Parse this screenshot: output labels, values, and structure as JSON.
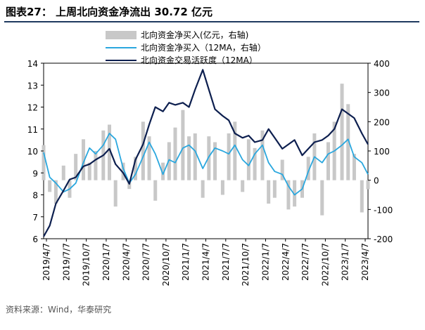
{
  "header": {
    "title": "图表27： 上周北向资金净流出 30.72 亿元"
  },
  "footer": {
    "source": "资料来源：Wind，华泰研究"
  },
  "chart_data": {
    "type": "bar+line",
    "title": "图表27： 上周北向资金净流出 30.72 亿元",
    "left_axis": {
      "min": 6,
      "max": 14,
      "ticks": [
        6,
        7,
        8,
        9,
        10,
        11,
        12,
        13,
        14
      ]
    },
    "right_axis": {
      "min": -200,
      "max": 400,
      "ticks": [
        -200,
        -100,
        0,
        100,
        200,
        300,
        400
      ]
    },
    "x_tick_labels": [
      "2019/4/7",
      "2019/7/7",
      "2019/10/7",
      "2020/1/7",
      "2020/4/7",
      "2020/7/7",
      "2020/10/7",
      "2021/1/7",
      "2021/4/7",
      "2021/7/7",
      "2021/10/7",
      "2022/1/7",
      "2022/4/7",
      "2022/7/7",
      "2022/10/7",
      "2023/1/7",
      "2023/4/7"
    ],
    "x_range": [
      "2019-04-07",
      "2023-04-30"
    ],
    "legend": {
      "placement": "top",
      "items": [
        {
          "label": "北向资金净买入(亿元，右轴)",
          "color": "#c8c8c8",
          "kind": "bar"
        },
        {
          "label": "北向资金净买入（12MA，右轴）",
          "color": "#2aa7de",
          "kind": "line"
        },
        {
          "label": "北向资金交易活跃度（12MA）",
          "color": "#0d1f4f",
          "kind": "line"
        }
      ]
    },
    "series": [
      {
        "name": "北向资金交易活跃度（12MA）",
        "axis": "left",
        "color": "#0d1f4f",
        "x": [
          "2019-04-07",
          "2019-05-05",
          "2019-06-02",
          "2019-07-07",
          "2019-08-04",
          "2019-09-01",
          "2019-10-06",
          "2019-11-03",
          "2019-12-01",
          "2020-01-05",
          "2020-02-02",
          "2020-03-01",
          "2020-04-05",
          "2020-05-03",
          "2020-05-31",
          "2020-07-05",
          "2020-08-02",
          "2020-08-30",
          "2020-10-04",
          "2020-11-01",
          "2020-11-29",
          "2021-01-03",
          "2021-01-31",
          "2021-02-28",
          "2021-04-04",
          "2021-05-02",
          "2021-05-30",
          "2021-07-04",
          "2021-08-01",
          "2021-08-29",
          "2021-10-03",
          "2021-10-31",
          "2021-11-28",
          "2022-01-02",
          "2022-01-30",
          "2022-02-27",
          "2022-04-03",
          "2022-05-01",
          "2022-05-29",
          "2022-07-03",
          "2022-07-31",
          "2022-08-28",
          "2022-10-02",
          "2022-10-30",
          "2022-11-27",
          "2023-01-01",
          "2023-01-29",
          "2023-02-26",
          "2023-04-02",
          "2023-04-30"
        ],
        "values": [
          6.1,
          6.6,
          7.6,
          8.2,
          8.7,
          8.8,
          9.3,
          9.4,
          9.6,
          9.8,
          10.1,
          9.4,
          9.0,
          8.5,
          9.6,
          10.3,
          11.2,
          12.0,
          11.8,
          12.2,
          12.1,
          12.2,
          12.0,
          12.8,
          13.7,
          12.8,
          11.9,
          11.6,
          11.4,
          10.8,
          10.6,
          10.7,
          10.4,
          10.5,
          11.0,
          10.6,
          10.1,
          10.3,
          10.5,
          9.8,
          10.1,
          10.4,
          10.5,
          10.7,
          11.0,
          11.9,
          11.7,
          11.5,
          10.8,
          10.3
        ]
      },
      {
        "name": "北向资金净买入（12MA，右轴）",
        "axis": "right",
        "color": "#2aa7de",
        "x": [
          "2019-04-07",
          "2019-05-05",
          "2019-06-02",
          "2019-07-07",
          "2019-08-04",
          "2019-09-01",
          "2019-10-06",
          "2019-11-03",
          "2019-12-01",
          "2020-01-05",
          "2020-02-02",
          "2020-03-01",
          "2020-04-05",
          "2020-05-03",
          "2020-05-31",
          "2020-07-05",
          "2020-08-02",
          "2020-08-30",
          "2020-10-04",
          "2020-11-01",
          "2020-11-29",
          "2021-01-03",
          "2021-01-31",
          "2021-02-28",
          "2021-04-04",
          "2021-05-02",
          "2021-05-30",
          "2021-07-04",
          "2021-08-01",
          "2021-08-29",
          "2021-10-03",
          "2021-10-31",
          "2021-11-28",
          "2022-01-02",
          "2022-01-30",
          "2022-02-27",
          "2022-04-03",
          "2022-05-01",
          "2022-05-29",
          "2022-07-03",
          "2022-07-31",
          "2022-08-28",
          "2022-10-02",
          "2022-10-30",
          "2022-11-27",
          "2023-01-01",
          "2023-01-29",
          "2023-02-26",
          "2023-04-02",
          "2023-04-30"
        ],
        "values": [
          95,
          10,
          -10,
          -40,
          -30,
          -10,
          60,
          110,
          90,
          120,
          160,
          140,
          40,
          -10,
          20,
          80,
          130,
          90,
          20,
          70,
          60,
          110,
          120,
          100,
          40,
          80,
          110,
          100,
          90,
          120,
          70,
          50,
          90,
          120,
          60,
          30,
          20,
          -20,
          -50,
          -30,
          30,
          80,
          60,
          90,
          100,
          120,
          140,
          80,
          60,
          20
        ]
      },
      {
        "name": "北向资金净买入(亿元，右轴)",
        "axis": "right",
        "color": "#c8c8c8",
        "kind": "bar",
        "x": [
          "2019-04-07",
          "2019-05-05",
          "2019-06-02",
          "2019-07-07",
          "2019-08-04",
          "2019-09-01",
          "2019-10-06",
          "2019-11-03",
          "2019-12-01",
          "2020-01-05",
          "2020-02-02",
          "2020-03-01",
          "2020-04-05",
          "2020-05-03",
          "2020-05-31",
          "2020-07-05",
          "2020-08-02",
          "2020-08-30",
          "2020-10-04",
          "2020-11-01",
          "2020-11-29",
          "2021-01-03",
          "2021-01-31",
          "2021-02-28",
          "2021-04-04",
          "2021-05-02",
          "2021-05-30",
          "2021-07-04",
          "2021-08-01",
          "2021-08-29",
          "2021-10-03",
          "2021-10-31",
          "2021-11-28",
          "2022-01-02",
          "2022-01-30",
          "2022-02-27",
          "2022-04-03",
          "2022-05-01",
          "2022-05-29",
          "2022-07-03",
          "2022-07-31",
          "2022-08-28",
          "2022-10-02",
          "2022-10-30",
          "2022-11-27",
          "2023-01-01",
          "2023-01-29",
          "2023-02-26",
          "2023-04-02",
          "2023-04-30"
        ],
        "values": [
          120,
          -40,
          -80,
          50,
          -60,
          90,
          140,
          60,
          100,
          170,
          190,
          -90,
          60,
          -30,
          80,
          200,
          150,
          -70,
          60,
          130,
          180,
          240,
          150,
          160,
          -60,
          150,
          130,
          -50,
          160,
          200,
          -40,
          140,
          110,
          170,
          -80,
          -60,
          70,
          -100,
          -90,
          -60,
          80,
          160,
          -120,
          130,
          200,
          330,
          260,
          90,
          -110,
          -31
        ]
      }
    ]
  }
}
